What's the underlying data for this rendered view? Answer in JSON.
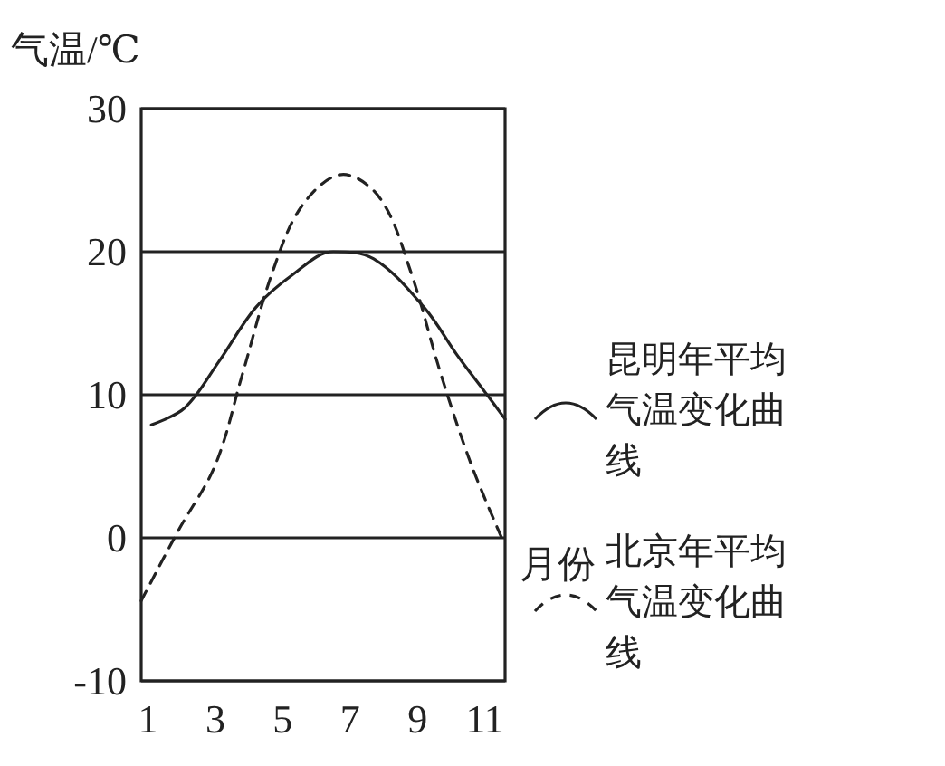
{
  "chart_data": {
    "type": "line",
    "xlabel": "月份",
    "ylabel": "气温/℃",
    "xlim": [
      0.8,
      11.6
    ],
    "xticks": [
      1,
      3,
      5,
      7,
      9,
      11
    ],
    "ylim": [
      -10,
      30
    ],
    "yticks": [
      -10,
      0,
      10,
      20,
      30
    ],
    "grid": "y",
    "legend": "right",
    "marker": "none",
    "series": [
      {
        "name": "昆明年平均气温变化曲线",
        "color": "#222222",
        "line_style": "solid",
        "x": [
          1.1,
          2.1,
          3.1,
          4.2,
          5.3,
          6.5,
          7.7,
          9.2,
          10.2,
          11.0,
          11.6
        ],
        "values": [
          7.9,
          9.1,
          12.3,
          16.1,
          18.4,
          20,
          19.5,
          16.1,
          12.7,
          10.2,
          8.3
        ]
      },
      {
        "name": "北京年平均气温变化曲线",
        "color": "#222222",
        "line_style": "dashed",
        "x": [
          0.8,
          1.9,
          3.0,
          3.8,
          4.7,
          5.6,
          6.8,
          7.9,
          8.8,
          9.7,
          10.6,
          11.5
        ],
        "values": [
          -4.4,
          0.5,
          5.1,
          11.4,
          18.6,
          23.3,
          25.4,
          23.7,
          18.6,
          11.4,
          5.1,
          0
        ]
      }
    ]
  }
}
